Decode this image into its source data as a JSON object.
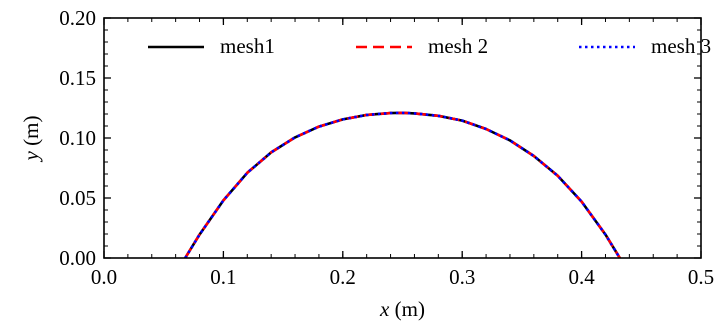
{
  "chart_data": {
    "type": "line",
    "xlabel": {
      "var": "x",
      "unit": " (m)"
    },
    "ylabel": {
      "var": "y",
      "unit": " (m)"
    },
    "xlim": [
      0.0,
      0.5
    ],
    "ylim": [
      0.0,
      0.2
    ],
    "xticks": [
      0.0,
      0.1,
      0.2,
      0.3,
      0.4,
      0.5
    ],
    "xtick_labels": [
      "0.0",
      "0.1",
      "0.2",
      "0.3",
      "0.4",
      "0.5"
    ],
    "yticks": [
      0.0,
      0.05,
      0.1,
      0.15,
      0.2
    ],
    "ytick_labels": [
      "0.00",
      "0.05",
      "0.10",
      "0.15",
      "0.20"
    ],
    "x_minor_step": 0.02,
    "y_minor_step": 0.01,
    "grid": false,
    "legend_position": "top",
    "series": [
      {
        "name": "mesh1",
        "color": "#000000",
        "linestyle": "solid",
        "x": [
          0.068,
          0.08,
          0.1,
          0.12,
          0.14,
          0.16,
          0.18,
          0.2,
          0.22,
          0.24,
          0.25,
          0.26,
          0.28,
          0.3,
          0.32,
          0.34,
          0.36,
          0.38,
          0.4,
          0.42,
          0.432
        ],
        "y": [
          0.0,
          0.0195,
          0.048,
          0.071,
          0.088,
          0.1005,
          0.1095,
          0.1155,
          0.1192,
          0.1208,
          0.121,
          0.1205,
          0.1185,
          0.1145,
          0.1075,
          0.098,
          0.085,
          0.0685,
          0.047,
          0.0195,
          0.0
        ]
      },
      {
        "name": "mesh 2",
        "color": "#ff0000",
        "linestyle": "dashed",
        "x": [
          0.068,
          0.08,
          0.1,
          0.12,
          0.14,
          0.16,
          0.18,
          0.2,
          0.22,
          0.24,
          0.25,
          0.26,
          0.28,
          0.3,
          0.32,
          0.34,
          0.36,
          0.38,
          0.4,
          0.42,
          0.432
        ],
        "y": [
          0.0,
          0.0195,
          0.048,
          0.071,
          0.088,
          0.1005,
          0.1095,
          0.1155,
          0.1192,
          0.1208,
          0.121,
          0.1205,
          0.1185,
          0.1145,
          0.1075,
          0.098,
          0.085,
          0.0685,
          0.047,
          0.0195,
          0.0
        ]
      },
      {
        "name": "mesh 3",
        "color": "#0000ff",
        "linestyle": "dotted",
        "x": [
          0.068,
          0.08,
          0.1,
          0.12,
          0.14,
          0.16,
          0.18,
          0.2,
          0.22,
          0.24,
          0.25,
          0.26,
          0.28,
          0.3,
          0.32,
          0.34,
          0.36,
          0.38,
          0.4,
          0.42,
          0.432
        ],
        "y": [
          0.0,
          0.0195,
          0.048,
          0.071,
          0.088,
          0.1005,
          0.1095,
          0.1155,
          0.1192,
          0.1208,
          0.121,
          0.1205,
          0.1185,
          0.1145,
          0.1075,
          0.098,
          0.085,
          0.0685,
          0.047,
          0.0195,
          0.0
        ]
      }
    ]
  }
}
